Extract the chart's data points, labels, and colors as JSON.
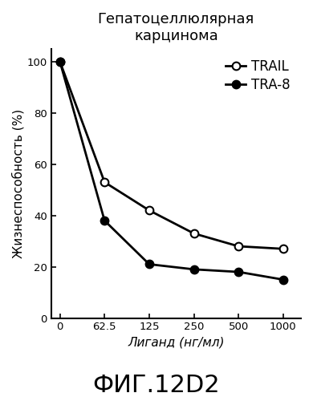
{
  "title_line1": "Гепатоцеллюлярная",
  "title_line2": "карцинома",
  "xlabel": "Лиганд (нг/мл)",
  "ylabel": "Жизнеспособность (%)",
  "fig_label": "ФИГ.12D2",
  "x_positions": [
    0,
    0.5,
    1.0,
    1.5,
    2.0,
    2.5
  ],
  "x_tick_labels": [
    "0",
    "62.5",
    "125",
    "250",
    "500",
    "1000"
  ],
  "trail_values": [
    100,
    53,
    42,
    33,
    28,
    27
  ],
  "tra8_values": [
    100,
    38,
    21,
    19,
    18,
    15
  ],
  "ylim": [
    0,
    105
  ],
  "yticks": [
    0,
    20,
    40,
    60,
    80,
    100
  ],
  "trail_color": "#000000",
  "tra8_color": "#000000",
  "background_color": "#ffffff",
  "legend_trail": "TRAIL",
  "legend_tra8": "TRA-8",
  "title_fontsize": 13,
  "axis_fontsize": 11,
  "tick_fontsize": 9.5,
  "legend_fontsize": 12,
  "fig_label_fontsize": 22
}
